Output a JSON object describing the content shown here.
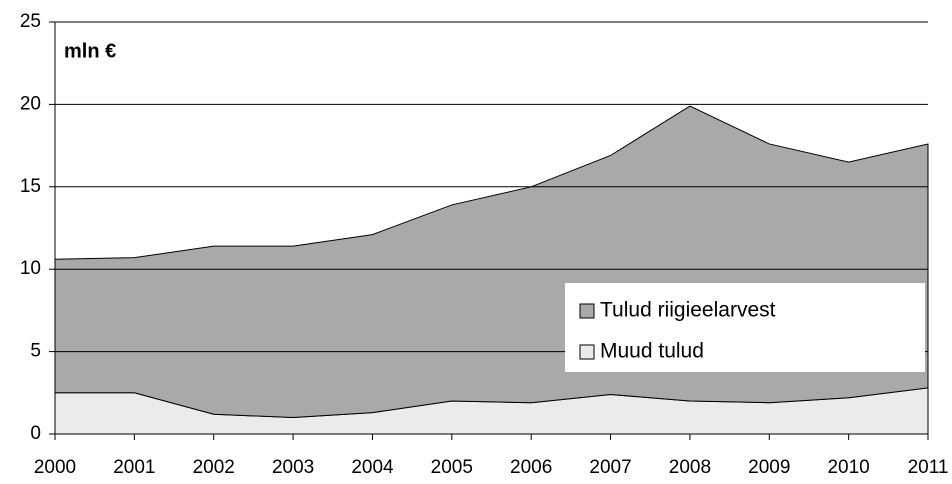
{
  "chart_data": {
    "type": "area",
    "stacked": true,
    "annotation": "mln €",
    "categories": [
      "2000",
      "2001",
      "2002",
      "2003",
      "2004",
      "2005",
      "2006",
      "2007",
      "2008",
      "2009",
      "2010",
      "2011"
    ],
    "series": [
      {
        "name": "Muud tulud",
        "color": "#ebebeb",
        "values": [
          2.5,
          2.5,
          1.2,
          1.0,
          1.3,
          2.0,
          1.9,
          2.4,
          2.0,
          1.9,
          2.2,
          2.8
        ]
      },
      {
        "name": "Tulud riigieelarvest",
        "color": "#a9a9a9",
        "values": [
          8.1,
          8.2,
          10.2,
          10.4,
          10.8,
          11.9,
          13.1,
          14.5,
          17.9,
          15.7,
          14.3,
          14.8
        ]
      }
    ],
    "ylim": [
      0,
      25
    ],
    "yticks": [
      0,
      5,
      10,
      15,
      20,
      25
    ],
    "grid": true,
    "legend": "lower right"
  }
}
